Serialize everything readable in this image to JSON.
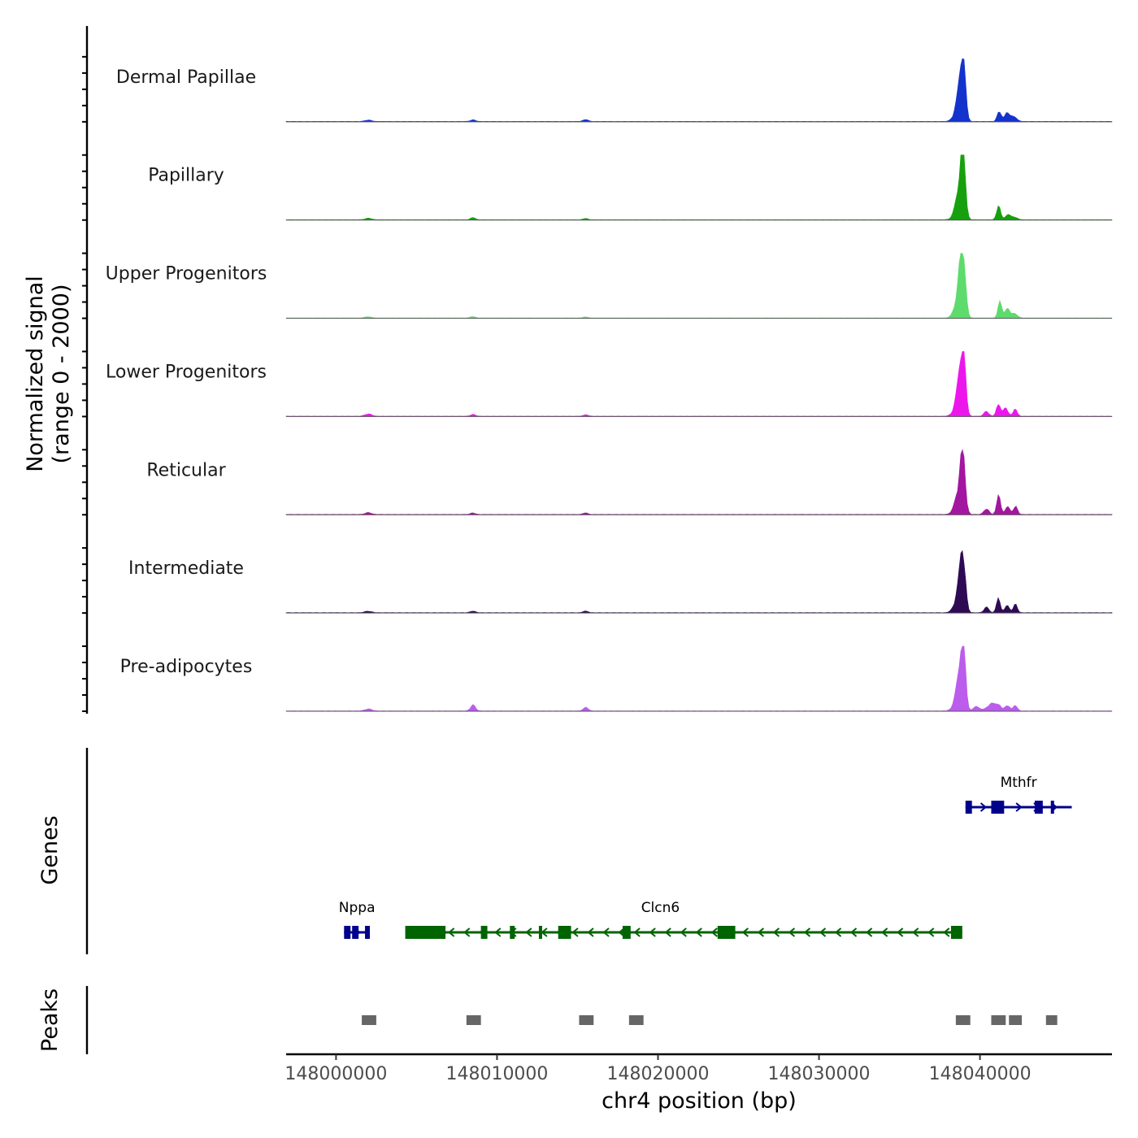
{
  "chart_data": {
    "type": "area",
    "chromosome": "chr4",
    "xlim": [
      147996900,
      148048200
    ],
    "xlabel": "chr4 position (bp)",
    "x_ticks": [
      148000000,
      148010000,
      148020000,
      148030000,
      148040000
    ],
    "x_tick_labels": [
      "148000000",
      "148010000",
      "148020000",
      "148030000",
      "148040000"
    ],
    "ylabel_line1": "Normalized signal",
    "ylabel_line2": "(range 0 - 2000)",
    "ylim": [
      0,
      2000
    ],
    "genes_label": "Genes",
    "peaks_label": "Peaks",
    "tracks": [
      {
        "name": "Dermal Papillae",
        "color": "#1433cc",
        "peaks": [
          [
            148038950,
            1850,
            150
          ],
          [
            148038750,
            700,
            200
          ],
          [
            148038600,
            300,
            250
          ],
          [
            148041200,
            380,
            120
          ],
          [
            148041700,
            300,
            150
          ],
          [
            148042100,
            150,
            200
          ],
          [
            148002000,
            50,
            200
          ],
          [
            148008500,
            60,
            150
          ],
          [
            148015500,
            70,
            150
          ]
        ]
      },
      {
        "name": "Papillary",
        "color": "#17a00e",
        "peaks": [
          [
            148038950,
            1920,
            150
          ],
          [
            148038750,
            800,
            200
          ],
          [
            148038600,
            300,
            250
          ],
          [
            148041150,
            480,
            120
          ],
          [
            148041700,
            160,
            150
          ],
          [
            148042100,
            100,
            200
          ],
          [
            148002000,
            50,
            200
          ],
          [
            148008500,
            70,
            150
          ],
          [
            148015500,
            40,
            150
          ]
        ]
      },
      {
        "name": "Upper Progenitors",
        "color": "#5ddb6c",
        "peaks": [
          [
            148038950,
            2000,
            150
          ],
          [
            148038750,
            900,
            200
          ],
          [
            148038600,
            300,
            250
          ],
          [
            148041250,
            580,
            120
          ],
          [
            148041700,
            280,
            150
          ],
          [
            148042100,
            150,
            200
          ],
          [
            148002000,
            40,
            200
          ],
          [
            148008500,
            50,
            150
          ],
          [
            148015500,
            35,
            150
          ]
        ]
      },
      {
        "name": "Lower Progenitors",
        "color": "#ec16ec",
        "peaks": [
          [
            148038950,
            2000,
            150
          ],
          [
            148038750,
            850,
            200
          ],
          [
            148038600,
            300,
            250
          ],
          [
            148041150,
            450,
            120
          ],
          [
            148041600,
            280,
            150
          ],
          [
            148042200,
            250,
            120
          ],
          [
            148040400,
            160,
            150
          ],
          [
            148002000,
            80,
            200
          ],
          [
            148008500,
            60,
            150
          ],
          [
            148015500,
            50,
            150
          ]
        ]
      },
      {
        "name": "Reticular",
        "color": "#a3169f",
        "peaks": [
          [
            148038950,
            1600,
            150
          ],
          [
            148038750,
            700,
            200
          ],
          [
            148038600,
            300,
            250
          ],
          [
            148041150,
            640,
            120
          ],
          [
            148041700,
            260,
            150
          ],
          [
            148042200,
            300,
            120
          ],
          [
            148040400,
            200,
            150
          ],
          [
            148002000,
            60,
            200
          ],
          [
            148008500,
            50,
            150
          ],
          [
            148015500,
            50,
            150
          ]
        ]
      },
      {
        "name": "Intermediate",
        "color": "#2f0a54",
        "peaks": [
          [
            148038950,
            1700,
            150
          ],
          [
            148038750,
            650,
            200
          ],
          [
            148038600,
            300,
            250
          ],
          [
            148041150,
            480,
            120
          ],
          [
            148041700,
            230,
            150
          ],
          [
            148042200,
            280,
            120
          ],
          [
            148040400,
            180,
            150
          ],
          [
            148002000,
            50,
            200
          ],
          [
            148008500,
            60,
            150
          ],
          [
            148015500,
            60,
            150
          ]
        ]
      },
      {
        "name": "Pre-adipocytes",
        "color": "#bb5cec",
        "peaks": [
          [
            148038950,
            2000,
            150
          ],
          [
            148038750,
            800,
            200
          ],
          [
            148038600,
            350,
            250
          ],
          [
            148040700,
            250,
            250
          ],
          [
            148041150,
            200,
            150
          ],
          [
            148041700,
            200,
            150
          ],
          [
            148042200,
            200,
            120
          ],
          [
            148039800,
            150,
            200
          ],
          [
            148002000,
            70,
            200
          ],
          [
            148008500,
            200,
            150
          ],
          [
            148015500,
            120,
            150
          ]
        ]
      }
    ],
    "genes": [
      {
        "name": "Mthfr",
        "color": "#00008b",
        "strand": "+",
        "start": 148039100,
        "end": 148045700,
        "exons": [
          [
            148039100,
            148039500
          ],
          [
            148040700,
            148041500
          ],
          [
            148043400,
            148043900
          ],
          [
            148044400,
            148044600
          ]
        ]
      },
      {
        "name": "Nppa",
        "color": "#00008b",
        "strand": "+",
        "start": 148000500,
        "end": 148002100,
        "exons": [
          [
            148000500,
            148000900
          ],
          [
            148001000,
            148001400
          ],
          [
            148001800,
            148002100
          ]
        ]
      },
      {
        "name": "Clcn6",
        "color": "#006400",
        "strand": "-",
        "start": 148004300,
        "end": 148038900,
        "exons": [
          [
            148004300,
            148006800
          ],
          [
            148009000,
            148009400
          ],
          [
            148010800,
            148011100
          ],
          [
            148012600,
            148012800
          ],
          [
            148013800,
            148014600
          ],
          [
            148017800,
            148018300
          ],
          [
            148023700,
            148024800
          ],
          [
            148038200,
            148038900
          ]
        ]
      }
    ],
    "peak_regions": [
      [
        148001600,
        148002500
      ],
      [
        148008100,
        148009000
      ],
      [
        148015100,
        148016000
      ],
      [
        148018200,
        148019100
      ],
      [
        148038500,
        148039400
      ],
      [
        148040700,
        148041600
      ],
      [
        148041800,
        148042600
      ],
      [
        148044100,
        148044800
      ]
    ]
  }
}
